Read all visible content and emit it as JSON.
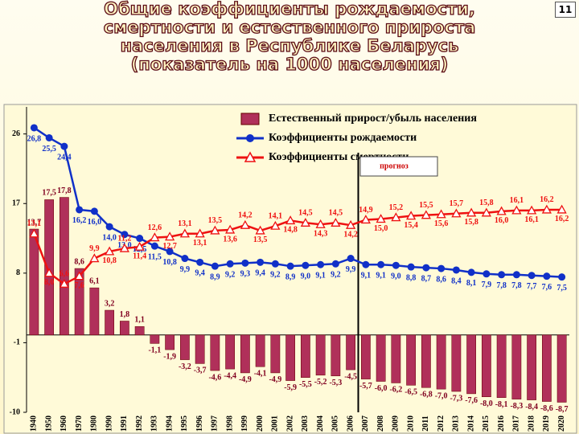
{
  "page_number": "11",
  "chart_data": {
    "type": "bar-line",
    "title": [
      "Общие коэффициенты рождаемости,",
      "смертности и естественного прироста",
      "населения в Республике Беларусь",
      "(показатель на 1000 населения)"
    ],
    "annotation": "прогноз",
    "categories": [
      "1940",
      "1950",
      "1960",
      "1970",
      "1980",
      "1990",
      "1991",
      "1992",
      "1993",
      "1994",
      "1995",
      "1996",
      "1997",
      "1998",
      "1999",
      "2000",
      "2001",
      "2002",
      "2003",
      "2004",
      "2005",
      "2006",
      "2007",
      "2008",
      "2009",
      "2010",
      "2011",
      "2012",
      "2013",
      "2014",
      "2015",
      "2016",
      "2017",
      "2018",
      "2019",
      "2020"
    ],
    "ylim": [
      -10,
      29.5
    ],
    "yticks": [
      26,
      17,
      8,
      -1,
      -10
    ],
    "series": [
      {
        "name": "Естественный прирост/убыль населения",
        "kind": "bar",
        "color": "#b0305a",
        "values": [
          13.7,
          17.5,
          17.8,
          8.6,
          6.1,
          3.2,
          1.8,
          1.1,
          -1.1,
          -1.9,
          -3.2,
          -3.7,
          -4.6,
          -4.4,
          -4.9,
          -4.1,
          -4.9,
          -5.9,
          -5.5,
          -5.2,
          -5.3,
          -4.5,
          -5.7,
          -6.0,
          -6.2,
          -6.5,
          -6.8,
          -7.0,
          -7.3,
          -7.6,
          -8.0,
          -8.1,
          -8.3,
          -8.4,
          -8.6,
          -8.7
        ],
        "value_labels": [
          "13,7",
          "17,5",
          "17,8",
          "8,6",
          "6,1",
          "3,2",
          "1,8",
          "1,1",
          "-1,1",
          "-1,9",
          "-3,2",
          "-3,7",
          "-4,6",
          "-4,4",
          "-4,9",
          "-4,1",
          "-4,9",
          "-5,9",
          "-5,5",
          "-5,2",
          "-5,3",
          "-4,5",
          "-5,7",
          "-6,0",
          "-6,2",
          "-6,5",
          "-6,8",
          "-7,0",
          "-7,3",
          "-7,6",
          "-8,0",
          "-8,1",
          "-8,3",
          "-8,4",
          "-8,6",
          "-8,7"
        ]
      },
      {
        "name": "Коэффициенты рождаемости",
        "kind": "line",
        "marker": "circle",
        "color": "#1030c8",
        "values": [
          26.8,
          25.5,
          24.4,
          16.2,
          16.0,
          14.0,
          13.0,
          12.5,
          11.5,
          10.8,
          9.9,
          9.4,
          8.9,
          9.2,
          9.3,
          9.4,
          9.2,
          8.9,
          9.0,
          9.1,
          9.2,
          9.9,
          9.1,
          9.1,
          9.0,
          8.8,
          8.7,
          8.6,
          8.4,
          8.1,
          7.9,
          7.8,
          7.8,
          7.7,
          7.6,
          7.5
        ],
        "value_labels": [
          "26,8",
          "25,5",
          "24,4",
          "16,2",
          "16,0",
          "14,0",
          "13,0",
          "12,5",
          "11,5",
          "10,8",
          "9,9",
          "9,4",
          "8,9",
          "9,2",
          "9,3",
          "9,4",
          "9,2",
          "8,9",
          "9,0",
          "9,1",
          "9,2",
          "9,9",
          "9,1",
          "9,1",
          "9,0",
          "8,8",
          "8,7",
          "8,6",
          "8,4",
          "8,1",
          "7,9",
          "7,8",
          "7,8",
          "7,7",
          "7,6",
          "7,5"
        ]
      },
      {
        "name": "Коэффициенты смертности",
        "kind": "line",
        "marker": "triangle",
        "color": "#ee1111",
        "values": [
          13.1,
          8.0,
          6.6,
          7.6,
          9.9,
          10.8,
          11.2,
          11.4,
          12.6,
          12.7,
          13.1,
          13.1,
          13.5,
          13.6,
          14.2,
          13.5,
          14.1,
          14.8,
          14.5,
          14.3,
          14.5,
          14.2,
          14.9,
          15.0,
          15.2,
          15.4,
          15.5,
          15.6,
          15.7,
          15.8,
          15.8,
          16.0,
          16.1,
          16.1,
          16.2,
          16.2
        ],
        "value_labels": [
          "13,1",
          "8,0",
          "6,6",
          "7,6",
          "9,9",
          "10,8",
          "11,2",
          "11,4",
          "12,6",
          "12,7",
          "13,1",
          "13,1",
          "13,5",
          "13,6",
          "14,2",
          "13,5",
          "14,1",
          "14,8",
          "14,5",
          "14,3",
          "14,5",
          "14,2",
          "14,9",
          "15,0",
          "15,2",
          "15,4",
          "15,5",
          "15,6",
          "15,7",
          "15,8",
          "15,8",
          "16,0",
          "16,1",
          "16,1",
          "16,2",
          "16,2"
        ]
      }
    ]
  }
}
